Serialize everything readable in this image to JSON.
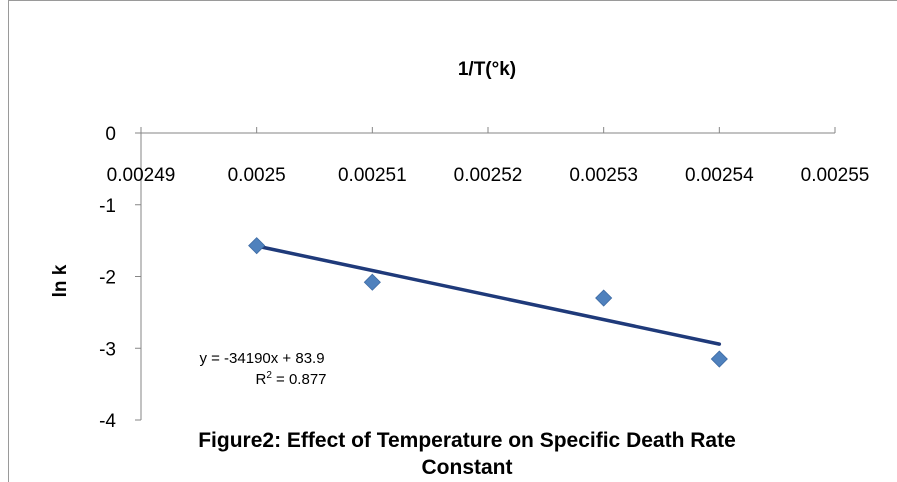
{
  "chart_data": {
    "type": "scatter",
    "title": "1/T(°k)",
    "caption_line1": "Figure2: Effect of Temperature on Specific Death Rate",
    "caption_line2": "Constant",
    "xlabel": "1/T(°k)",
    "ylabel": "ln k",
    "xlim": [
      0.00249,
      0.00255
    ],
    "ylim": [
      -4,
      0
    ],
    "x_ticks": [
      "0.00249",
      "0.0025",
      "0.00251",
      "0.00252",
      "0.00253",
      "0.00254",
      "0.00255"
    ],
    "x_tick_values": [
      0.00249,
      0.0025,
      0.00251,
      0.00252,
      0.00253,
      0.00254,
      0.00255
    ],
    "y_ticks": [
      "0",
      "-1",
      "-2",
      "-3",
      "-4"
    ],
    "y_tick_values": [
      0,
      -1,
      -2,
      -3,
      -4
    ],
    "series": [
      {
        "x": [
          0.0025,
          0.00251,
          0.00253,
          0.00254
        ],
        "y": [
          -1.57,
          -2.08,
          -2.3,
          -3.15
        ],
        "color": "#4F81BD",
        "marker": "diamond"
      }
    ],
    "trendline": {
      "slope": -34190,
      "intercept": 83.9,
      "x_range": [
        0.0025,
        0.00254
      ],
      "color": "#1F3A7A",
      "equation": "y = -34190x + 83.9",
      "r2_prefix": "R",
      "r2_sup": "2",
      "r2_suffix": " = 0.877"
    },
    "grid": false,
    "legend": "none",
    "axis_color": "#868686"
  }
}
